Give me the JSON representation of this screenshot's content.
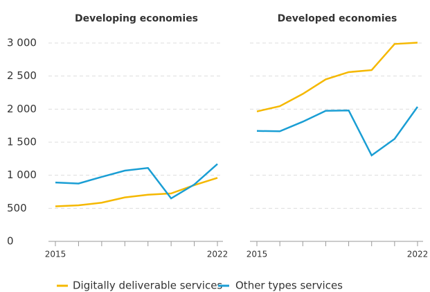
{
  "chart_data": [
    {
      "type": "line",
      "title": "Developing economies",
      "categories": [
        "2015",
        null,
        null,
        null,
        null,
        null,
        null,
        "2022"
      ],
      "series": [
        {
          "name": "Digitally deliverable services",
          "color": "#f5b800",
          "values": [
            530,
            545,
            585,
            665,
            705,
            725,
            850,
            960
          ]
        },
        {
          "name": "Other types services",
          "color": "#1a9ed4",
          "values": [
            890,
            875,
            975,
            1070,
            1110,
            650,
            860,
            1170
          ]
        }
      ],
      "ylim": [
        0,
        3000
      ],
      "yticks": [
        0,
        500,
        {
          "value": 1000,
          "label": "1 000"
        },
        {
          "value": 1500,
          "label": "1 500"
        },
        {
          "value": 2000,
          "label": "2 000"
        },
        {
          "value": 2500,
          "label": "2 500"
        },
        {
          "value": 3000,
          "label": "3 000"
        }
      ],
      "grid": true
    },
    {
      "type": "line",
      "title": "Developed economies",
      "categories": [
        "2015",
        null,
        null,
        null,
        null,
        null,
        null,
        "2022"
      ],
      "series": [
        {
          "color": "#f5b800",
          "values": [
            1965,
            2045,
            2230,
            2450,
            2560,
            2590,
            2985,
            3005
          ]
        },
        {
          "color": "#1a9ed4",
          "values": [
            1670,
            1665,
            1810,
            1975,
            1980,
            1300,
            1550,
            2035
          ]
        }
      ],
      "ylim": [
        0,
        3000
      ],
      "grid": true
    }
  ]
}
